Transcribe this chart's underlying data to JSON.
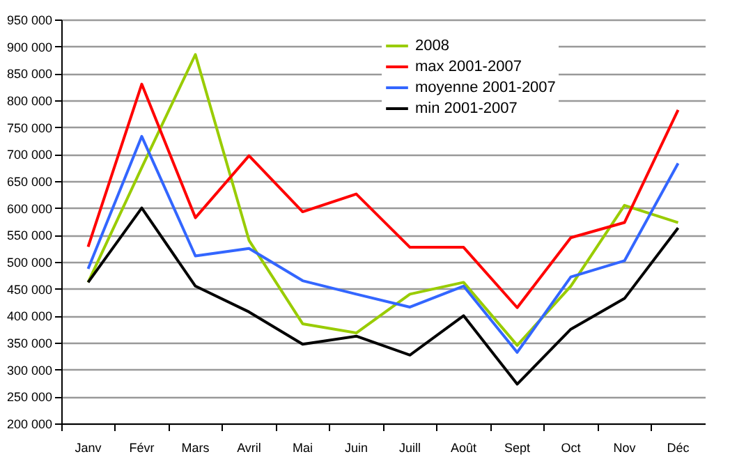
{
  "chart_data": {
    "type": "line",
    "categories": [
      "Janv",
      "Févr",
      "Mars",
      "Avril",
      "Mai",
      "Juin",
      "Juill",
      "Août",
      "Sept",
      "Oct",
      "Nov",
      "Déc"
    ],
    "series": [
      {
        "name": "2008",
        "color": "#99cc00",
        "values": [
          462000,
          675000,
          885000,
          540000,
          385000,
          368000,
          440000,
          462000,
          345000,
          455000,
          605000,
          573000
        ]
      },
      {
        "name": "max 2001-2007",
        "color": "#ff0000",
        "values": [
          528000,
          830000,
          582000,
          697000,
          593000,
          626000,
          527000,
          527000,
          415000,
          545000,
          573000,
          782000
        ]
      },
      {
        "name": "moyenne 2001-2007",
        "color": "#3366ff",
        "values": [
          487000,
          733000,
          511000,
          525000,
          465000,
          440000,
          416000,
          455000,
          332000,
          472000,
          502000,
          683000
        ]
      },
      {
        "name": "min 2001-2007",
        "color": "#000000",
        "values": [
          462000,
          600000,
          455000,
          407000,
          347000,
          362000,
          327000,
          400000,
          273000,
          375000,
          432000,
          563000
        ]
      }
    ],
    "ylim": [
      200000,
      950000
    ],
    "yticks": [
      {
        "value": 200000,
        "label": "200 000"
      },
      {
        "value": 250000,
        "label": "250 000"
      },
      {
        "value": 300000,
        "label": "300 000"
      },
      {
        "value": 350000,
        "label": "350 000"
      },
      {
        "value": 400000,
        "label": "400 000"
      },
      {
        "value": 450000,
        "label": "450 000"
      },
      {
        "value": 500000,
        "label": "500 000"
      },
      {
        "value": 550000,
        "label": "550 000"
      },
      {
        "value": 600000,
        "label": "600 000"
      },
      {
        "value": 650000,
        "label": "650 000"
      },
      {
        "value": 700000,
        "label": "700 000"
      },
      {
        "value": 750000,
        "label": "750 000"
      },
      {
        "value": 800000,
        "label": "800 000"
      },
      {
        "value": 850000,
        "label": "850 000"
      },
      {
        "value": 900000,
        "label": "900 000"
      },
      {
        "value": 950000,
        "label": "950 000"
      }
    ],
    "grid": "y",
    "legend": "top",
    "marker": "none",
    "line_style": "solid"
  }
}
